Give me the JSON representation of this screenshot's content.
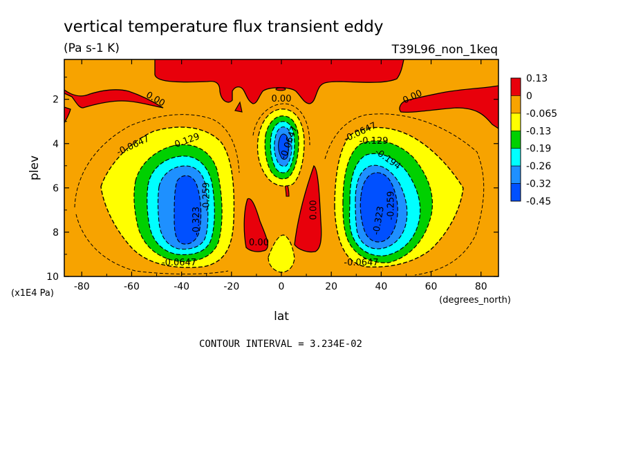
{
  "chart_data": {
    "type": "heatmap",
    "title": "vertical temperature flux transient eddy",
    "units_label": "(Pa s-1 K)",
    "run_label": "T39L96_non_1keq",
    "xlabel": "lat",
    "ylabel": "plev",
    "x_units": "(degrees_north)",
    "y_units": "(x1E4 Pa)",
    "xlim": [
      -87,
      87
    ],
    "ylim": [
      10,
      0.2
    ],
    "x_ticks": [
      "-80",
      "-60",
      "-40",
      "-20",
      "0",
      "20",
      "40",
      "60",
      "80"
    ],
    "y_ticks": [
      "2",
      "4",
      "6",
      "8",
      "10"
    ],
    "contour_interval_text": "CONTOUR INTERVAL = 3.234E-02",
    "colorbar": {
      "labels": [
        "0.13",
        "0",
        "-0.065",
        "-0.13",
        "-0.19",
        "-0.26",
        "-0.32",
        "-0.45"
      ],
      "colors": [
        "#e8000b",
        "#f7a300",
        "#ffff00",
        "#00d000",
        "#00ffff",
        "#1e90ff",
        "#0050ff"
      ]
    },
    "contour_labels": [
      {
        "text": "0.00",
        "lat": -51,
        "plev": 2.1,
        "angle": 30
      },
      {
        "text": "0.00",
        "lat": 0,
        "plev": 2.1,
        "angle": 0
      },
      {
        "text": "0.00",
        "lat": 53,
        "plev": 2.0,
        "angle": -25
      },
      {
        "text": "-0.0647",
        "lat": -59,
        "plev": 4.2,
        "angle": -25
      },
      {
        "text": "-0.129",
        "lat": -38,
        "plev": 4.0,
        "angle": -20
      },
      {
        "text": "-0.0647",
        "lat": 32,
        "plev": 3.6,
        "angle": -25
      },
      {
        "text": "-0.129",
        "lat": 37,
        "plev": 4.0,
        "angle": 0
      },
      {
        "text": "-0.194",
        "lat": 42,
        "plev": 4.8,
        "angle": 35
      },
      {
        "text": "-0.0647",
        "lat": 4,
        "plev": 4.0,
        "angle": -70
      },
      {
        "text": "0.00",
        "lat": 14,
        "plev": 7.0,
        "angle": -90
      },
      {
        "text": "0.00",
        "lat": -9,
        "plev": 8.6,
        "angle": 0
      },
      {
        "text": "-0.323",
        "lat": -33,
        "plev": 7.5,
        "angle": -90
      },
      {
        "text": "-0.259",
        "lat": -29,
        "plev": 6.4,
        "angle": -90
      },
      {
        "text": "-0.323",
        "lat": 40,
        "plev": 7.5,
        "angle": -80
      },
      {
        "text": "-0.259",
        "lat": 45,
        "plev": 6.8,
        "angle": -90
      },
      {
        "text": "-0.0647",
        "lat": -41,
        "plev": 9.5,
        "angle": 0
      },
      {
        "text": "-0.0647",
        "lat": 32,
        "plev": 9.5,
        "angle": 0
      }
    ]
  }
}
